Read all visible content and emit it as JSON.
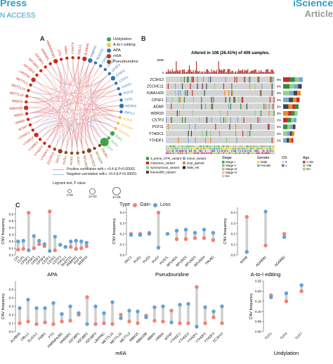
{
  "header": {
    "left_title": "Press",
    "left_sub": "N ACCESS",
    "right_title": "iScience",
    "right_sub": "Article"
  },
  "panel_a": {
    "letter": "A",
    "legend": [
      {
        "label": "Uridylation",
        "color": "#3aa64a"
      },
      {
        "label": "A-to-I editing",
        "color": "#f2c24a"
      },
      {
        "label": "APA",
        "color": "#2a76b8"
      },
      {
        "label": "m6A",
        "color": "#cc2a1f"
      },
      {
        "label": "Pseudouridine",
        "color": "#8a4a1c"
      }
    ],
    "genes": [
      {
        "name": "PABPN1",
        "cat": "APA"
      },
      {
        "name": "NUDT21",
        "cat": "APA"
      },
      {
        "name": "CPSF1",
        "cat": "APA"
      },
      {
        "name": "CPSF2",
        "cat": "APA"
      },
      {
        "name": "CPSF3",
        "cat": "APA"
      },
      {
        "name": "CPSF4",
        "cat": "APA"
      },
      {
        "name": "CSTF1",
        "cat": "APA"
      },
      {
        "name": "CSTF2",
        "cat": "APA"
      },
      {
        "name": "PCF11",
        "cat": "APA"
      },
      {
        "name": "CLP1",
        "cat": "APA"
      },
      {
        "name": "WDR33",
        "cat": "APA"
      },
      {
        "name": "FIP1L1",
        "cat": "APA"
      },
      {
        "name": "ADAR",
        "cat": "A-to-I editing"
      },
      {
        "name": "ADARB1",
        "cat": "A-to-I editing"
      },
      {
        "name": "ADARB2",
        "cat": "A-to-I editing"
      },
      {
        "name": "TUT1",
        "cat": "Uridylation"
      },
      {
        "name": "TUT4",
        "cat": "Uridylation"
      },
      {
        "name": "TUT7",
        "cat": "Uridylation"
      },
      {
        "name": "TRUB2",
        "cat": "Pseudouridine"
      },
      {
        "name": "RPUSD4",
        "cat": "Pseudouridine"
      },
      {
        "name": "RPUSD3",
        "cat": "Pseudouridine"
      },
      {
        "name": "RPUSD2",
        "cat": "Pseudouridine"
      },
      {
        "name": "PUS7",
        "cat": "Pseudouridine"
      },
      {
        "name": "PUS3",
        "cat": "Pseudouridine"
      },
      {
        "name": "PUS1",
        "cat": "Pseudouridine"
      },
      {
        "name": "DKC1",
        "cat": "Pseudouridine"
      },
      {
        "name": "ZCCHC4",
        "cat": "m6A"
      },
      {
        "name": "YTHDF3",
        "cat": "m6A"
      },
      {
        "name": "YTHDF2",
        "cat": "m6A"
      },
      {
        "name": "YTHDF1",
        "cat": "m6A"
      },
      {
        "name": "YTHDC2",
        "cat": "m6A"
      },
      {
        "name": "YTHDC1",
        "cat": "m6A"
      },
      {
        "name": "WTAP",
        "cat": "m6A"
      },
      {
        "name": "VIRMA",
        "cat": "m6A"
      },
      {
        "name": "RBMX",
        "cat": "m6A"
      },
      {
        "name": "RBM15B",
        "cat": "m6A"
      },
      {
        "name": "RBM15",
        "cat": "m6A"
      },
      {
        "name": "METTL16",
        "cat": "m6A"
      },
      {
        "name": "METTL14",
        "cat": "m6A"
      },
      {
        "name": "METTL3",
        "cat": "m6A"
      },
      {
        "name": "LRPPRC",
        "cat": "m6A"
      },
      {
        "name": "IGF2BP3",
        "cat": "m6A"
      },
      {
        "name": "IGF2BP2",
        "cat": "m6A"
      },
      {
        "name": "IGF2BP1",
        "cat": "m6A"
      },
      {
        "name": "HNRNPC",
        "cat": "m6A"
      },
      {
        "name": "HNRNPA2B1",
        "cat": "m6A"
      },
      {
        "name": "FTO",
        "cat": "m6A"
      },
      {
        "name": "FMR1",
        "cat": "m6A"
      },
      {
        "name": "ELAVL1",
        "cat": "m6A"
      },
      {
        "name": "CBLL1",
        "cat": "m6A"
      },
      {
        "name": "ALKBH5",
        "cat": "m6A"
      }
    ],
    "line_legend": [
      {
        "label": "Positive correlation with r >0.4 & P<0.00001",
        "color": "#e8a6a6"
      },
      {
        "label": "Negative correlation with r >0.4 & P<0.00001",
        "color": "#9fc3e6"
      }
    ],
    "pvalue_title": "Logrank test, P value",
    "pvalue_items": [
      "0.05",
      "1e-04",
      "1e-08"
    ]
  },
  "panel_b": {
    "letter": "B",
    "title": "Altered in 108 (26.41%) of 409 samples.",
    "top_max": "6280",
    "top_min": "0",
    "genes": [
      "ZC3H13",
      "ZCCHC11",
      "KIAA1429",
      "CPSF1",
      "ADAR",
      "WDR33",
      "CSTF3",
      "PCF11",
      "YTHDC1",
      "YTHDF1"
    ],
    "percents": [
      "5%",
      "4%",
      "3%",
      "3%",
      "3%",
      "3%",
      "2%",
      "2%",
      "2%",
      "2%"
    ],
    "variant_legend": [
      {
        "label": "3_prime_UTR_variant",
        "color": "#2f8f3f"
      },
      {
        "label": "missense_variant",
        "color": "#cc2a1f"
      },
      {
        "label": "synonymous_variant",
        "color": "#8fd18a"
      },
      {
        "label": "frameshift_variant",
        "color": "#444444"
      },
      {
        "label": "intron_variant",
        "color": "#7aa7d6"
      },
      {
        "label": "stop_gained",
        "color": "#f28a1f"
      },
      {
        "label": "Multi_Hit",
        "color": "#222222"
      }
    ],
    "stage_title": "Stage",
    "stage_items": [
      {
        "label": "Stage I",
        "color": "#3aa64a"
      },
      {
        "label": "Stage II",
        "color": "#7fc97f"
      },
      {
        "label": "Stage III",
        "color": "#beaed4"
      },
      {
        "label": "Stage IV",
        "color": "#fdc086"
      },
      {
        "label": "NA",
        "color": "#cccccc"
      }
    ],
    "gender_title": "Gender",
    "gender_items": [
      {
        "label": "Male",
        "color": "#ffd92f"
      },
      {
        "label": "Female",
        "color": "#66c2a5"
      }
    ],
    "os_title": "OS",
    "os_items": [
      {
        "label": "0",
        "color": "#d9d9d9"
      },
      {
        "label": "1",
        "color": "#7570b3"
      }
    ],
    "age_title": "Age",
    "age_items": [
      {
        "label": ">=65",
        "color": "#e7298a"
      },
      {
        "label": "<65",
        "color": "#a6d854"
      },
      {
        "label": "NA",
        "color": "#bbbbbb"
      }
    ]
  },
  "panel_c": {
    "letter": "C",
    "type_label": "Type",
    "legend": [
      {
        "label": "Gain",
        "color": "#f08272"
      },
      {
        "label": "Loss",
        "color": "#5fa3d9"
      }
    ],
    "ylabel": "CNV frequency",
    "charts": [
      {
        "title": "APA",
        "type": "dot",
        "ylim": [
          0,
          0.7
        ],
        "ticks": [
          "0.0",
          "0.1",
          "0.2",
          "0.3",
          "0.4",
          "0.5",
          "0.6"
        ],
        "categories": [
          "CFI",
          "CLP1",
          "CPSF1",
          "CPSF2",
          "CPSF3",
          "CPSF4",
          "CSTF1",
          "CSTF2",
          "CSTF3",
          "FIP1L1",
          "NUDT21",
          "PABPN1",
          "PCF11",
          "WDR33"
        ],
        "gain": [
          0.08,
          0.09,
          0.62,
          0.1,
          0.16,
          0.13,
          0.64,
          0.07,
          0.15,
          0.12,
          0.12,
          0.09,
          0.1,
          0.13
        ],
        "loss": [
          0.2,
          0.21,
          0.07,
          0.28,
          0.21,
          0.16,
          0.06,
          0.27,
          0.15,
          0.12,
          0.2,
          0.21,
          0.2,
          0.18
        ]
      },
      {
        "title": "Pseudouridine",
        "type": "dot",
        "ylim": [
          0,
          0.45
        ],
        "ticks": [
          "0.0",
          "0.1",
          "0.2",
          "0.3",
          "0.4"
        ],
        "categories": [
          "DKC1",
          "PUS1",
          "PUS3",
          "PUS7",
          "PUS7L",
          "RPUSD1",
          "RPUSD2",
          "RPUSD3",
          "RPUSD4",
          "TRUB2"
        ],
        "gain": [
          0.2,
          0.2,
          0.21,
          0.4,
          0.2,
          0.15,
          0.15,
          0.16,
          0.16,
          0.14
        ],
        "loss": [
          0.19,
          0.19,
          0.2,
          0.07,
          0.2,
          0.23,
          0.24,
          0.21,
          0.24,
          0.21
        ]
      },
      {
        "title": "A-to-I editing",
        "type": "dot",
        "ylim": [
          0,
          0.45
        ],
        "ticks": [
          "0.0",
          "0.1",
          "0.2",
          "0.3",
          "0.4"
        ],
        "categories": [
          "ADAR",
          "ADARB1",
          "ADARB2"
        ],
        "gain": [
          0.36,
          0.09,
          0.2
        ],
        "loss": [
          0.03,
          0.41,
          0.17
        ]
      },
      {
        "title": "m6A",
        "type": "dot",
        "ylim": [
          0,
          0.6
        ],
        "ticks": [
          "0.0",
          "0.1",
          "0.2",
          "0.3",
          "0.4",
          "0.5"
        ],
        "categories": [
          "ALKBH5",
          "CBLL1",
          "ELAVL1",
          "FMR1",
          "FTO",
          "HNRNPA2B1",
          "HNRNPC",
          "IGF2BP1",
          "IGF2BP2",
          "IGF2BP3",
          "LRPPRC",
          "METTL14",
          "METTL16",
          "METTL3",
          "RBM15",
          "RBM15B",
          "RBMX",
          "VIRMA",
          "WTAP",
          "YTHDC1",
          "YTHDC2",
          "YTHDF1",
          "YTHDF2",
          "YTHDF3",
          "ZC3H13"
        ],
        "gain": [
          0.1,
          0.12,
          0.09,
          0.11,
          0.09,
          0.12,
          0.13,
          0.2,
          0.41,
          0.09,
          0.1,
          0.09,
          0.2,
          0.12,
          0.1,
          0.19,
          0.13,
          0.12,
          0.25,
          0.1,
          0.1,
          0.53,
          0.1,
          0.17,
          0.1
        ],
        "loss": [
          0.28,
          0.38,
          0.28,
          0.28,
          0.34,
          0.21,
          0.3,
          0.22,
          0.09,
          0.3,
          0.22,
          0.35,
          0.16,
          0.25,
          0.24,
          0.17,
          0.29,
          0.3,
          0.11,
          0.32,
          0.33,
          0.06,
          0.29,
          0.24,
          0.3
        ]
      },
      {
        "title": "Uridylation",
        "type": "dot",
        "ylim": [
          0,
          0.25
        ],
        "ticks": [
          "0.00",
          "0.05",
          "0.10",
          "0.15",
          "0.20",
          "0.25"
        ],
        "categories": [
          "TUT1",
          "TUT4",
          "TUT7"
        ],
        "gain": [
          0.18,
          0.15,
          0.2
        ],
        "loss": [
          0.17,
          0.19,
          0.23
        ]
      }
    ]
  }
}
